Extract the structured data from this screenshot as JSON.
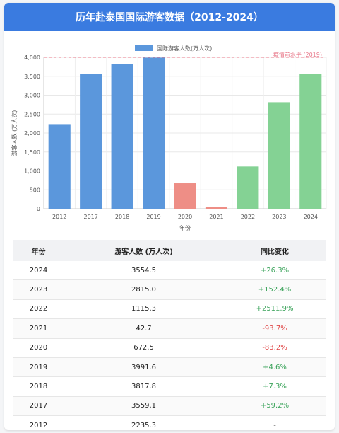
{
  "page": {
    "title": "历年赴泰国国际游客数据（2012-2024）"
  },
  "chart_data": {
    "type": "bar",
    "categories": [
      "2012",
      "2017",
      "2018",
      "2019",
      "2020",
      "2021",
      "2022",
      "2023",
      "2024"
    ],
    "values": [
      2235.3,
      3559.1,
      3817.8,
      3991.6,
      672.5,
      42.7,
      1115.3,
      2815.0,
      3554.5
    ],
    "bar_colors": [
      "#5b97dc",
      "#5b97dc",
      "#5b97dc",
      "#5b97dc",
      "#ee8e86",
      "#ee8e86",
      "#84d294",
      "#84d294",
      "#84d294"
    ],
    "series": [
      {
        "name": "国际游客人数(万人次)",
        "color": "#5b97dc"
      }
    ],
    "xlabel": "年份",
    "ylabel": "游客人数 (万人次)",
    "ylim": [
      0,
      4000
    ],
    "yticks": [
      "0",
      "500",
      "1,000",
      "1,500",
      "2,000",
      "2,500",
      "3,000",
      "3,500",
      "4,000"
    ],
    "ytick_values": [
      0,
      500,
      1000,
      1500,
      2000,
      2500,
      3000,
      3500,
      4000
    ],
    "grid": true,
    "legend": "top-center",
    "reference_line": {
      "value": 4000,
      "label": "疫情前水平 (2019)",
      "color": "#e8788a"
    }
  },
  "table": {
    "headers": [
      "年份",
      "游客人数 (万人次)",
      "同比变化"
    ],
    "rows": [
      {
        "year": "2024",
        "visitors": "3554.5",
        "change": "+26.3%",
        "trend": "pos"
      },
      {
        "year": "2023",
        "visitors": "2815.0",
        "change": "+152.4%",
        "trend": "pos"
      },
      {
        "year": "2022",
        "visitors": "1115.3",
        "change": "+2511.9%",
        "trend": "pos"
      },
      {
        "year": "2021",
        "visitors": "42.7",
        "change": "-93.7%",
        "trend": "neg"
      },
      {
        "year": "2020",
        "visitors": "672.5",
        "change": "-83.2%",
        "trend": "neg"
      },
      {
        "year": "2019",
        "visitors": "3991.6",
        "change": "+4.6%",
        "trend": "pos"
      },
      {
        "year": "2018",
        "visitors": "3817.8",
        "change": "+7.3%",
        "trend": "pos"
      },
      {
        "year": "2017",
        "visitors": "3559.1",
        "change": "+59.2%",
        "trend": "pos"
      },
      {
        "year": "2012",
        "visitors": "2235.3",
        "change": "-",
        "trend": "neutral"
      }
    ]
  }
}
